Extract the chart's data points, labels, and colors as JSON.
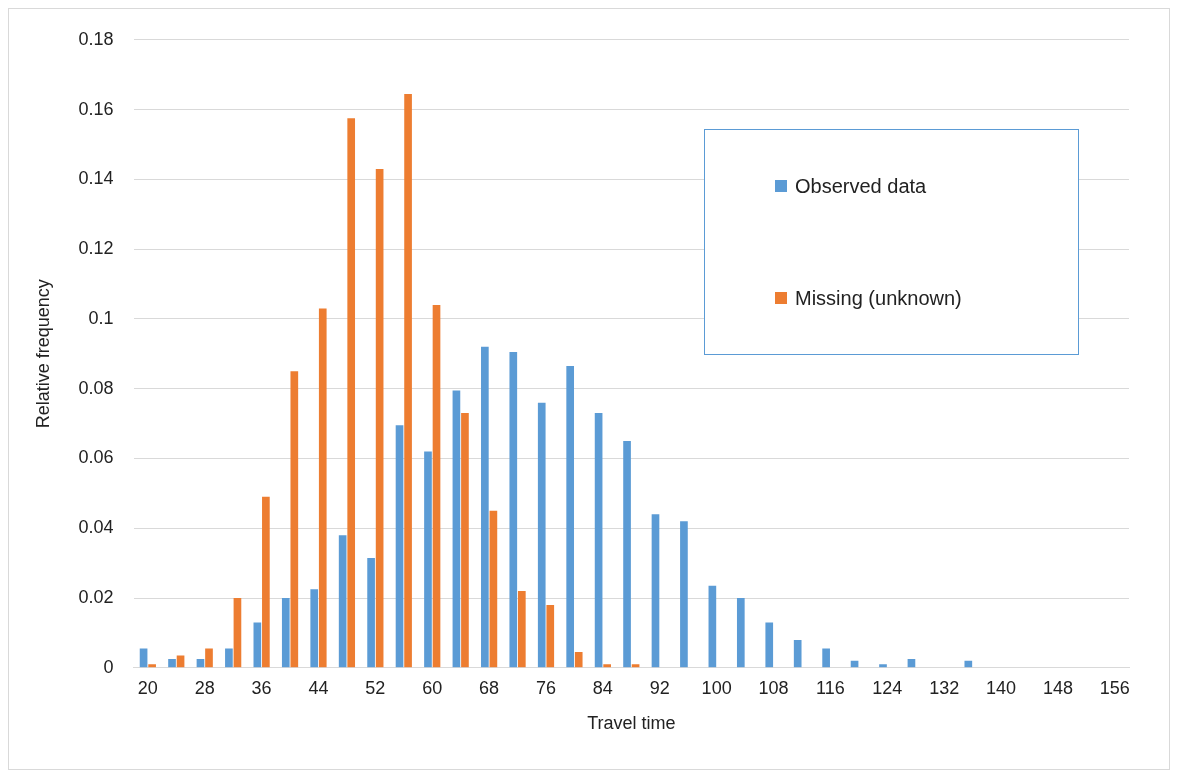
{
  "chart_data": {
    "type": "bar",
    "xlabel": "Travel time",
    "ylabel": "Relative frequency",
    "categories": [
      "20",
      null,
      "28",
      null,
      "36",
      null,
      "44",
      null,
      "52",
      null,
      "60",
      null,
      "68",
      null,
      "76",
      null,
      "84",
      null,
      "92",
      null,
      "100",
      null,
      "108",
      null,
      "116",
      null,
      "124",
      null,
      "132",
      null,
      "140",
      null,
      "148",
      null,
      "156"
    ],
    "series": [
      {
        "name": "Observed data",
        "color": "#5b9bd5",
        "values": [
          0.0055,
          0.0025,
          0.0025,
          0.0055,
          0.013,
          0.02,
          0.0225,
          0.038,
          0.0315,
          0.0695,
          0.062,
          0.0795,
          0.092,
          0.0905,
          0.076,
          0.0865,
          0.073,
          0.065,
          0.044,
          0.042,
          0.0235,
          0.02,
          0.013,
          0.008,
          0.0055,
          0.002,
          0.001,
          0.0025,
          0,
          0.002,
          0,
          0,
          0,
          0,
          0
        ]
      },
      {
        "name": "Missing (unknown)",
        "color": "#ed7d31",
        "values": [
          0.001,
          0.0035,
          0.0055,
          0.02,
          0.049,
          0.085,
          0.103,
          0.1575,
          0.143,
          0.1645,
          0.104,
          0.073,
          0.045,
          0.022,
          0.018,
          0.0045,
          0.001,
          0.001,
          0,
          0,
          0,
          0,
          0,
          0,
          0,
          0,
          0,
          0,
          0,
          0,
          0,
          0,
          0,
          0,
          0
        ]
      }
    ],
    "ylim": [
      0,
      0.18
    ],
    "yticks": [
      0,
      0.02,
      0.04,
      0.06,
      0.08,
      0.1,
      0.12,
      0.14,
      0.16,
      0.18
    ],
    "grid": "y",
    "legend": "top right"
  }
}
